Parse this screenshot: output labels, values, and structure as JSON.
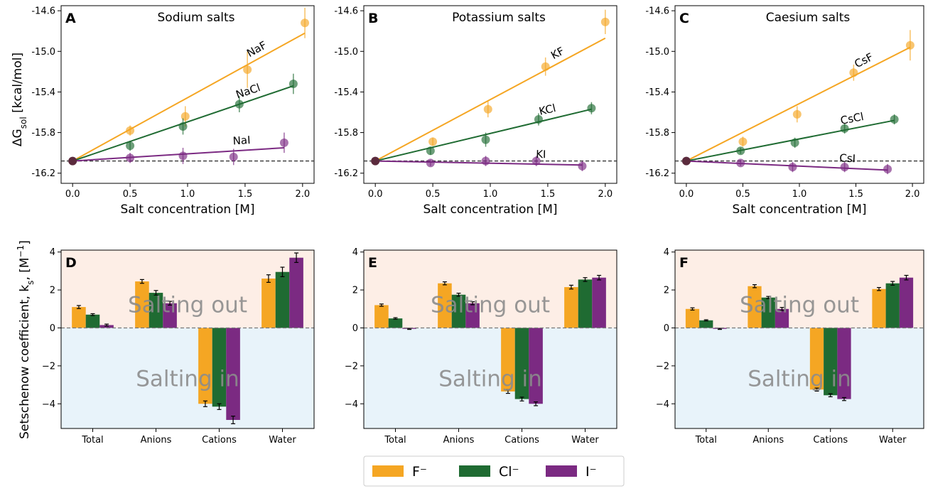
{
  "colors": {
    "F": "#f5a623",
    "Cl": "#1f6b32",
    "I": "#7b2a82",
    "out_bg": "#fdeee6",
    "in_bg": "#e8f3fa"
  },
  "legend": [
    {
      "label": "F⁻",
      "key": "F"
    },
    {
      "label": "Cl⁻",
      "key": "Cl"
    },
    {
      "label": "I⁻",
      "key": "I"
    }
  ],
  "top_ylabel_main": "ΔG",
  "top_ylabel_sub": "sol",
  "top_ylabel_unit": " [kcal/mol]",
  "bottom_ylabel_main": "Setschenow coefficient, k",
  "bottom_ylabel_sub": "s",
  "bottom_ylabel_unit": ", [M",
  "bottom_ylabel_sup": "−1",
  "bottom_ylabel_end": "]",
  "region_out": "Salting out",
  "region_in": "Salting in",
  "chart_data": [
    {
      "type": "scatter",
      "letter": "A",
      "title": "Sodium salts",
      "xlabel": "Salt concentration [M]",
      "xlim": [
        -0.1,
        2.1
      ],
      "ylim": [
        -16.3,
        -14.55
      ],
      "xticks": [
        "0.0",
        "0.5",
        "1.0",
        "1.5",
        "2.0"
      ],
      "yticks": [
        "-14.6",
        "-15.0",
        "-15.4",
        "-15.8",
        "-16.2"
      ],
      "reference_line": -16.08,
      "origin_point": [
        0,
        -16.08
      ],
      "series": [
        {
          "name": "NaF",
          "color_key": "F",
          "x": [
            0.5,
            0.98,
            1.52,
            2.02
          ],
          "y": [
            -15.78,
            -15.64,
            -15.18,
            -14.72
          ],
          "err": [
            0.05,
            0.1,
            0.18,
            0.15
          ],
          "fit_end": [
            2.02,
            -14.82
          ]
        },
        {
          "name": "NaCl",
          "color_key": "Cl",
          "x": [
            0.5,
            0.96,
            1.45,
            1.92
          ],
          "y": [
            -15.93,
            -15.74,
            -15.52,
            -15.32
          ],
          "err": [
            0.05,
            0.08,
            0.08,
            0.1
          ],
          "fit_end": [
            1.92,
            -15.34
          ]
        },
        {
          "name": "NaI",
          "color_key": "I",
          "x": [
            0.5,
            0.96,
            1.4,
            1.84
          ],
          "y": [
            -16.05,
            -16.03,
            -16.04,
            -15.9
          ],
          "err": [
            0.05,
            0.08,
            0.08,
            0.1
          ],
          "fit_end": [
            1.84,
            -15.95
          ]
        }
      ]
    },
    {
      "type": "scatter",
      "letter": "B",
      "title": "Potassium salts",
      "xlabel": "Salt concentration [M]",
      "xlim": [
        -0.1,
        2.1
      ],
      "ylim": [
        -16.3,
        -14.55
      ],
      "xticks": [
        "0.0",
        "0.5",
        "1.0",
        "1.5",
        "2.0"
      ],
      "yticks": [
        "-14.6",
        "-15.0",
        "-15.4",
        "-15.8",
        "-16.2"
      ],
      "reference_line": -16.08,
      "origin_point": [
        0,
        -16.08
      ],
      "series": [
        {
          "name": "KF",
          "color_key": "F",
          "x": [
            0.5,
            0.98,
            1.48,
            2.0
          ],
          "y": [
            -15.89,
            -15.57,
            -15.15,
            -14.71
          ],
          "err": [
            0.04,
            0.08,
            0.09,
            0.12
          ],
          "fit_end": [
            2.0,
            -14.87
          ]
        },
        {
          "name": "KCl",
          "color_key": "Cl",
          "x": [
            0.48,
            0.96,
            1.42,
            1.88
          ],
          "y": [
            -15.98,
            -15.87,
            -15.67,
            -15.56
          ],
          "err": [
            0.04,
            0.07,
            0.06,
            0.06
          ],
          "fit_end": [
            1.88,
            -15.57
          ]
        },
        {
          "name": "KI",
          "color_key": "I",
          "x": [
            0.48,
            0.96,
            1.4,
            1.8
          ],
          "y": [
            -16.1,
            -16.08,
            -16.08,
            -16.13
          ],
          "err": [
            0.03,
            0.05,
            0.05,
            0.05
          ],
          "fit_end": [
            1.8,
            -16.12
          ]
        }
      ]
    },
    {
      "type": "scatter",
      "letter": "C",
      "title": "Caesium salts",
      "xlabel": "Salt concentration [M]",
      "xlim": [
        -0.1,
        2.1
      ],
      "ylim": [
        -16.3,
        -14.55
      ],
      "xticks": [
        "0.0",
        "0.5",
        "1.0",
        "1.5",
        "2.0"
      ],
      "yticks": [
        "-14.6",
        "-15.0",
        "-15.4",
        "-15.8",
        "-16.2"
      ],
      "reference_line": -16.08,
      "origin_point": [
        0,
        -16.08
      ],
      "series": [
        {
          "name": "CsF",
          "color_key": "F",
          "x": [
            0.5,
            0.98,
            1.48,
            1.98
          ],
          "y": [
            -15.89,
            -15.62,
            -15.21,
            -14.94
          ],
          "err": [
            0.05,
            0.08,
            0.08,
            0.15
          ],
          "fit_end": [
            1.98,
            -14.96
          ]
        },
        {
          "name": "CsCl",
          "color_key": "Cl",
          "x": [
            0.48,
            0.96,
            1.4,
            1.84
          ],
          "y": [
            -15.98,
            -15.9,
            -15.76,
            -15.67
          ],
          "err": [
            0.03,
            0.05,
            0.05,
            0.05
          ],
          "fit_end": [
            1.84,
            -15.68
          ]
        },
        {
          "name": "CsI",
          "color_key": "I",
          "x": [
            0.48,
            0.94,
            1.4,
            1.78
          ],
          "y": [
            -16.1,
            -16.14,
            -16.14,
            -16.16
          ],
          "err": [
            0.03,
            0.05,
            0.05,
            0.05
          ],
          "fit_end": [
            1.78,
            -16.17
          ]
        }
      ]
    },
    {
      "type": "bar",
      "letter": "D",
      "categories": [
        "Total",
        "Anions",
        "Cations",
        "Water"
      ],
      "ylim": [
        -5.3,
        4.1
      ],
      "yticks": [
        4,
        2,
        0,
        -2,
        -4
      ],
      "ytick_labels": [
        "4",
        "2",
        "0",
        "−2",
        "−4"
      ],
      "series": [
        {
          "name": "F⁻",
          "color_key": "F",
          "values": [
            1.1,
            2.45,
            -4.0,
            2.6
          ],
          "err": [
            0.08,
            0.1,
            0.15,
            0.2
          ]
        },
        {
          "name": "Cl⁻",
          "color_key": "Cl",
          "values": [
            0.7,
            1.85,
            -4.15,
            2.95
          ],
          "err": [
            0.05,
            0.12,
            0.15,
            0.25
          ]
        },
        {
          "name": "I⁻",
          "color_key": "I",
          "values": [
            0.15,
            1.3,
            -4.85,
            3.7
          ],
          "err": [
            0.05,
            0.1,
            0.2,
            0.25
          ]
        }
      ]
    },
    {
      "type": "bar",
      "letter": "E",
      "categories": [
        "Total",
        "Anions",
        "Cations",
        "Water"
      ],
      "ylim": [
        -5.3,
        4.1
      ],
      "yticks": [
        4,
        2,
        0,
        -2,
        -4
      ],
      "ytick_labels": [
        "4",
        "2",
        "0",
        "−2",
        "−4"
      ],
      "series": [
        {
          "name": "F⁻",
          "color_key": "F",
          "values": [
            1.2,
            2.35,
            -3.35,
            2.15
          ],
          "err": [
            0.06,
            0.08,
            0.1,
            0.1
          ]
        },
        {
          "name": "Cl⁻",
          "color_key": "Cl",
          "values": [
            0.5,
            1.75,
            -3.75,
            2.55
          ],
          "err": [
            0.04,
            0.08,
            0.1,
            0.1
          ]
        },
        {
          "name": "I⁻",
          "color_key": "I",
          "values": [
            -0.05,
            1.3,
            -4.0,
            2.65
          ],
          "err": [
            0.03,
            0.08,
            0.1,
            0.12
          ]
        }
      ]
    },
    {
      "type": "bar",
      "letter": "F",
      "categories": [
        "Total",
        "Anions",
        "Cations",
        "Water"
      ],
      "ylim": [
        -5.3,
        4.1
      ],
      "yticks": [
        4,
        2,
        0,
        -2,
        -4
      ],
      "ytick_labels": [
        "4",
        "2",
        "0",
        "−2",
        "−4"
      ],
      "series": [
        {
          "name": "F⁻",
          "color_key": "F",
          "values": [
            1.0,
            2.2,
            -3.25,
            2.05
          ],
          "err": [
            0.06,
            0.08,
            0.08,
            0.08
          ]
        },
        {
          "name": "Cl⁻",
          "color_key": "Cl",
          "values": [
            0.4,
            1.6,
            -3.55,
            2.35
          ],
          "err": [
            0.03,
            0.06,
            0.08,
            0.1
          ]
        },
        {
          "name": "I⁻",
          "color_key": "I",
          "values": [
            -0.05,
            1.0,
            -3.75,
            2.65
          ],
          "err": [
            0.03,
            0.08,
            0.08,
            0.12
          ]
        }
      ]
    }
  ]
}
